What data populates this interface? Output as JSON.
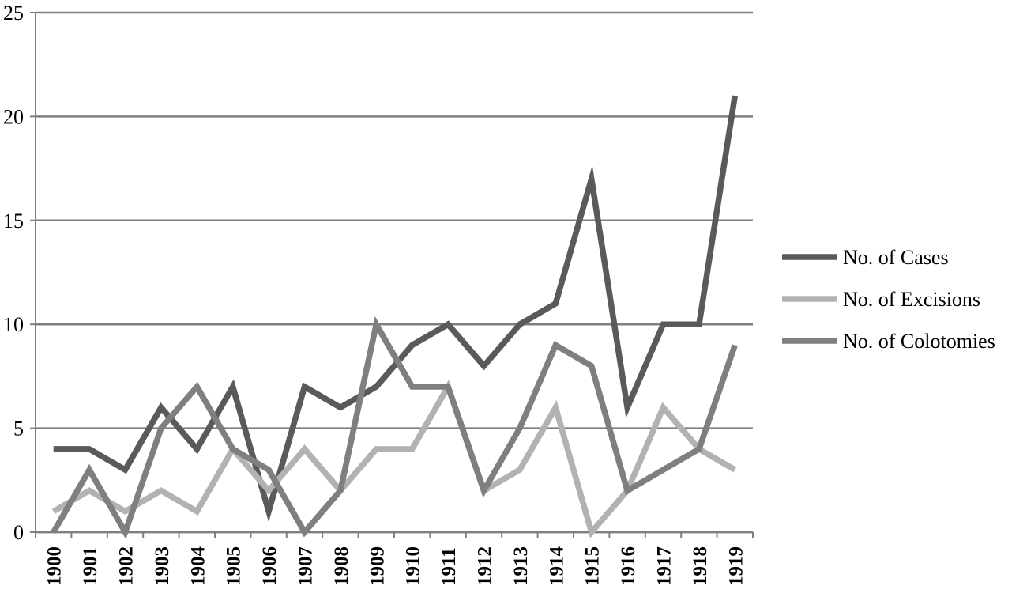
{
  "chart_data": {
    "type": "line",
    "title": "",
    "xlabel": "",
    "ylabel": "",
    "categories": [
      "1900",
      "1901",
      "1902",
      "1903",
      "1904",
      "1905",
      "1906",
      "1907",
      "1908",
      "1909",
      "1910",
      "1911",
      "1912",
      "1913",
      "1914",
      "1915",
      "1916",
      "1917",
      "1918",
      "1919"
    ],
    "ylim": [
      0,
      25
    ],
    "yticks": [
      0,
      5,
      10,
      15,
      20,
      25
    ],
    "grid": true,
    "legend_position": "right",
    "series": [
      {
        "name": "No. of Cases",
        "color": "#5a5a5a",
        "values": [
          4,
          4,
          3,
          6,
          4,
          7,
          1,
          7,
          6,
          7,
          9,
          10,
          8,
          10,
          11,
          17,
          6,
          10,
          10,
          21
        ]
      },
      {
        "name": "No. of Excisions",
        "color": "#b2b2b2",
        "values": [
          1,
          2,
          1,
          2,
          1,
          4,
          2,
          4,
          2,
          4,
          4,
          7,
          2,
          3,
          6,
          0,
          2,
          6,
          4,
          3
        ]
      },
      {
        "name": "No. of Colotomies",
        "color": "#7f7f7f",
        "values": [
          0,
          3,
          0,
          5,
          7,
          4,
          3,
          0,
          2,
          10,
          7,
          7,
          2,
          5,
          9,
          8,
          2,
          3,
          4,
          9
        ]
      }
    ]
  }
}
